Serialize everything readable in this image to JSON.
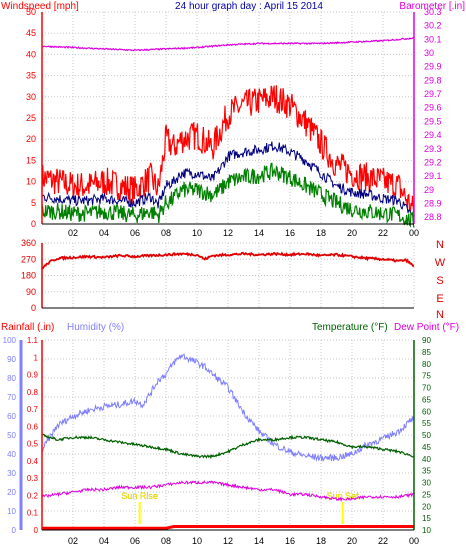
{
  "colors": {
    "wind": "#ff0000",
    "wind_avg": "#00007f",
    "wind_low": "#008000",
    "barometer": "#e000e0",
    "direction": "#e00000",
    "humidity": "#7f7fff",
    "temperature": "#006000",
    "dewpoint": "#e000e0",
    "rainfall": "#ff0000",
    "title": "#0000aa",
    "grid": "#c8c8c8",
    "axis": "#000000",
    "sun": "#ffff00"
  },
  "chart_data": [
    {
      "type": "line",
      "title": "24 hour graph day : April 15 2014",
      "left_label": "Windspeed [mph]",
      "right_label": "Barometer [.in]",
      "x_ticks": [
        "02",
        "04",
        "06",
        "08",
        "10",
        "12",
        "14",
        "16",
        "18",
        "20",
        "22",
        "00"
      ],
      "y_left": {
        "min": 0,
        "max": 50,
        "ticks": [
          "0",
          "5",
          "10",
          "15",
          "20",
          "25",
          "30",
          "35",
          "40",
          "45",
          "50"
        ]
      },
      "y_right": {
        "min": 28.75,
        "max": 30.3,
        "ticks": [
          "28.8",
          "28.9",
          "29",
          "29.1",
          "29.2",
          "29.3",
          "29.4",
          "29.5",
          "29.6",
          "29.7",
          "29.8",
          "29.9",
          "30",
          "30.1",
          "30.2",
          "30.3"
        ]
      },
      "series": [
        {
          "axis": "left",
          "role": "gust",
          "x": [
            0,
            1,
            2,
            3,
            4,
            5,
            6,
            7,
            7.5,
            8,
            8.5,
            9,
            10,
            11,
            11.5,
            12,
            13,
            14,
            15,
            16,
            17,
            18,
            19,
            20,
            21,
            22,
            23,
            24
          ],
          "values": [
            11,
            10,
            9,
            9,
            10,
            9,
            8,
            11,
            8,
            20,
            18,
            20,
            21,
            18,
            22,
            26,
            28,
            29,
            30,
            28,
            24,
            19,
            14,
            12,
            11,
            10,
            9,
            3
          ]
        },
        {
          "axis": "left",
          "role": "average",
          "x": [
            0,
            1,
            2,
            3,
            4,
            5,
            6,
            7,
            7.5,
            8,
            8.5,
            9,
            10,
            11,
            11.5,
            12,
            13,
            14,
            15,
            16,
            17,
            18,
            19,
            20,
            21,
            22,
            23,
            24
          ],
          "values": [
            6.5,
            6,
            5.5,
            5.5,
            6,
            5.5,
            5,
            6.5,
            4.5,
            9,
            10,
            12,
            12,
            10.5,
            13,
            16,
            17,
            17.5,
            18.5,
            17,
            15,
            12,
            9,
            7.5,
            7,
            6,
            5.5,
            1.5
          ]
        },
        {
          "axis": "left",
          "role": "low",
          "x": [
            0,
            1,
            2,
            3,
            4,
            5,
            6,
            7,
            7.5,
            8,
            8.5,
            9,
            10,
            11,
            11.5,
            12,
            13,
            14,
            15,
            16,
            17,
            18,
            19,
            20,
            21,
            22,
            23,
            24
          ],
          "values": [
            3,
            3,
            2.5,
            2.5,
            3,
            2.5,
            2,
            3,
            2,
            5,
            6,
            8,
            8,
            7,
            8,
            10,
            11,
            11.5,
            12.5,
            11,
            9,
            7,
            5,
            3.5,
            3,
            2.5,
            2,
            0.5
          ]
        },
        {
          "axis": "right",
          "role": "barometer",
          "x": [
            0,
            2,
            4,
            6,
            8,
            10,
            12,
            14,
            16,
            18,
            20,
            22,
            24
          ],
          "values": [
            30.05,
            30.04,
            30.03,
            30.02,
            30.03,
            30.04,
            30.06,
            30.07,
            30.07,
            30.07,
            30.08,
            30.09,
            30.11
          ]
        }
      ]
    },
    {
      "type": "line",
      "right_labels": [
        "N",
        "W",
        "S",
        "E",
        "N"
      ],
      "x_ticks": [
        "02",
        "04",
        "06",
        "08",
        "10",
        "12",
        "14",
        "16",
        "18",
        "20",
        "22",
        "00"
      ],
      "y": {
        "min": 0,
        "max": 360,
        "ticks": [
          "0",
          "90",
          "180",
          "270",
          "360"
        ]
      },
      "series": [
        {
          "role": "wind_direction",
          "x": [
            0,
            0.5,
            1,
            2,
            3,
            4,
            5,
            6,
            7,
            8,
            9,
            10,
            10.5,
            11,
            12,
            13,
            14,
            15,
            16,
            17,
            18,
            19,
            20,
            21,
            22,
            23,
            23.5,
            24
          ],
          "values": [
            220,
            255,
            275,
            280,
            285,
            280,
            290,
            285,
            290,
            295,
            300,
            295,
            270,
            290,
            295,
            300,
            295,
            300,
            295,
            300,
            290,
            295,
            285,
            275,
            270,
            260,
            265,
            230
          ]
        }
      ]
    },
    {
      "type": "line",
      "left_labels": [
        "Rainfall (.in)",
        "Humidity (%)"
      ],
      "right_labels": [
        "Temperature (°F)",
        "Dew Point (°F)"
      ],
      "x_ticks": [
        "02",
        "04",
        "06",
        "08",
        "10",
        "12",
        "14",
        "16",
        "18",
        "20",
        "22",
        "00"
      ],
      "y_rain": {
        "min": 0,
        "max": 1.1,
        "ticks": [
          "0",
          "0.1",
          "0.2",
          "0.3",
          "0.4",
          "0.5",
          "0.6",
          "0.7",
          "0.8",
          "0.9",
          "1",
          "1.1"
        ]
      },
      "y_humidity": {
        "min": 0,
        "max": 100,
        "ticks": [
          "0",
          "10",
          "20",
          "30",
          "40",
          "50",
          "60",
          "70",
          "80",
          "90",
          "100"
        ]
      },
      "y_temp": {
        "min": 10,
        "max": 90,
        "ticks": [
          "10",
          "15",
          "20",
          "25",
          "30",
          "35",
          "40",
          "45",
          "50",
          "55",
          "60",
          "65",
          "70",
          "75",
          "80",
          "85",
          "90"
        ]
      },
      "annotations": [
        "Sun Rise",
        "Sun Set"
      ],
      "series": [
        {
          "axis": "humidity",
          "role": "humidity",
          "x": [
            0,
            1,
            2,
            3,
            4,
            5,
            6,
            6.5,
            7,
            7.5,
            8,
            8.5,
            9,
            9.5,
            10,
            10.5,
            11,
            12,
            13,
            14,
            15,
            16,
            17,
            18,
            19,
            20,
            21,
            22,
            23,
            24
          ],
          "values": [
            42,
            55,
            60,
            63,
            65,
            66,
            68,
            66,
            72,
            79,
            82,
            88,
            92,
            90,
            88,
            86,
            82,
            75,
            62,
            52,
            45,
            41,
            39,
            38,
            38,
            40,
            45,
            48,
            52,
            59
          ]
        },
        {
          "axis": "temp",
          "role": "temperature",
          "x": [
            0,
            1,
            2,
            3,
            4,
            5,
            6,
            7,
            8,
            9,
            10,
            11,
            12,
            13,
            14,
            15,
            16,
            17,
            18,
            19,
            20,
            21,
            22,
            23,
            24
          ],
          "values": [
            50,
            48,
            49,
            49,
            48,
            47,
            46,
            45,
            44,
            42,
            41,
            41,
            43,
            46,
            48,
            48,
            49,
            49,
            48,
            47,
            45,
            45,
            44,
            43,
            41
          ]
        },
        {
          "axis": "temp",
          "role": "dewpoint",
          "x": [
            0,
            1,
            2,
            3,
            4,
            5,
            6,
            7,
            8,
            9,
            10,
            11,
            12,
            13,
            14,
            15,
            16,
            17,
            18,
            19,
            20,
            21,
            22,
            23,
            24
          ],
          "values": [
            24,
            25,
            26,
            27,
            27,
            28,
            28,
            28,
            29,
            30,
            30,
            30,
            29,
            28,
            27,
            27,
            25,
            25,
            24,
            23,
            23,
            24,
            24,
            24,
            25
          ]
        },
        {
          "axis": "rain",
          "role": "rainfall",
          "x": [
            0,
            8,
            8.5,
            12,
            12.5,
            24
          ],
          "values": [
            0.01,
            0.01,
            0.02,
            0.02,
            0.02,
            0.02
          ]
        }
      ]
    }
  ]
}
